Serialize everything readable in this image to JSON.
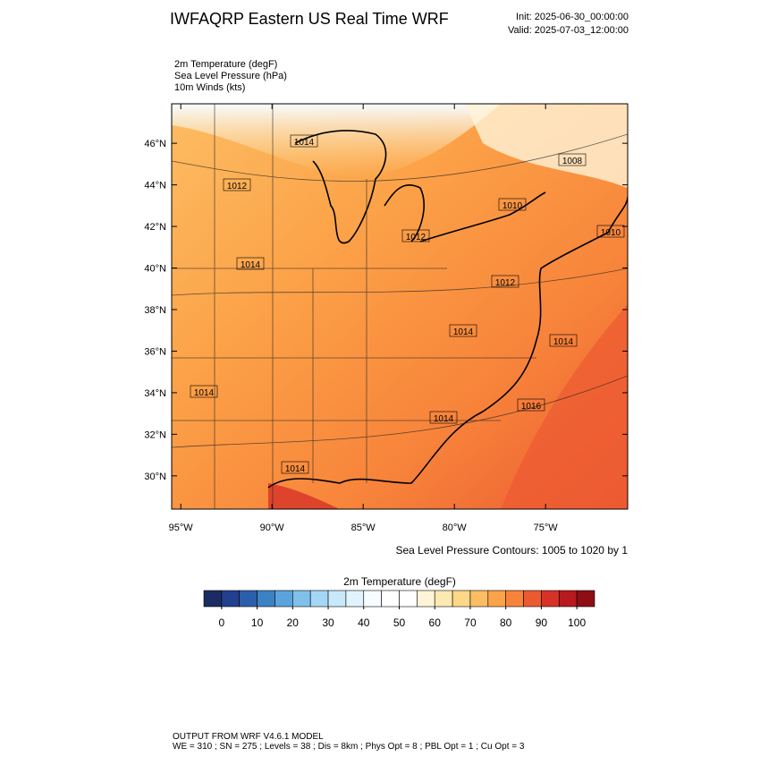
{
  "header": {
    "title": "IWFAQRP Eastern US Real Time WRF",
    "init": "Init: 2025-06-30_00:00:00",
    "valid": "Valid: 2025-07-03_12:00:00"
  },
  "fields": [
    "2m Temperature   (degF)",
    "Sea Level Pressure   (hPa)",
    "10m Winds   (kts)"
  ],
  "chart_data": {
    "type": "map",
    "xlim": [
      -95.5,
      -70.5
    ],
    "ylim": [
      28.4,
      47.9
    ],
    "xticks": [
      {
        "value": -95,
        "label": "95°W"
      },
      {
        "value": -90,
        "label": "90°W"
      },
      {
        "value": -85,
        "label": "85°W"
      },
      {
        "value": -80,
        "label": "80°W"
      },
      {
        "value": -75,
        "label": "75°W"
      }
    ],
    "yticks": [
      {
        "value": 30,
        "label": "30°N"
      },
      {
        "value": 32,
        "label": "32°N"
      },
      {
        "value": 34,
        "label": "34°N"
      },
      {
        "value": 36,
        "label": "36°N"
      },
      {
        "value": 38,
        "label": "38°N"
      },
      {
        "value": 40,
        "label": "40°N"
      },
      {
        "value": 42,
        "label": "42°N"
      },
      {
        "value": 44,
        "label": "44°N"
      },
      {
        "value": 46,
        "label": "46°N"
      }
    ],
    "isobar_labels": [
      1014,
      1012,
      1008,
      1010,
      1010,
      1012,
      1014,
      1012,
      1014,
      1014,
      1014,
      1016,
      1014,
      1014
    ],
    "contour_note": "Sea Level Pressure Contours: 1005 to 1020 by 1"
  },
  "colorbar": {
    "title": "2m Temperature  (degF)",
    "range": [
      -5,
      105
    ],
    "colors": [
      "#1b2c62",
      "#233f8f",
      "#2c5fab",
      "#3b82c4",
      "#5ba3dd",
      "#80c1ec",
      "#a4d7f5",
      "#c8e9fa",
      "#e1f3fc",
      "#f7fcff",
      "#ffffff",
      "#ffffff",
      "#fff4d8",
      "#feeab0",
      "#fed789",
      "#fdbd63",
      "#fca248",
      "#f7833a",
      "#ec5a32",
      "#d73227",
      "#b8191e",
      "#8e0e16"
    ],
    "ticks": [
      0,
      10,
      20,
      30,
      40,
      50,
      60,
      70,
      80,
      90,
      100
    ]
  },
  "footer": [
    "OUTPUT FROM WRF V4.6.1 MODEL",
    "WE = 310 ; SN = 275 ; Levels = 38 ; Dis = 8km ; Phys Opt = 8 ; PBL Opt = 1 ; Cu Opt = 3"
  ]
}
